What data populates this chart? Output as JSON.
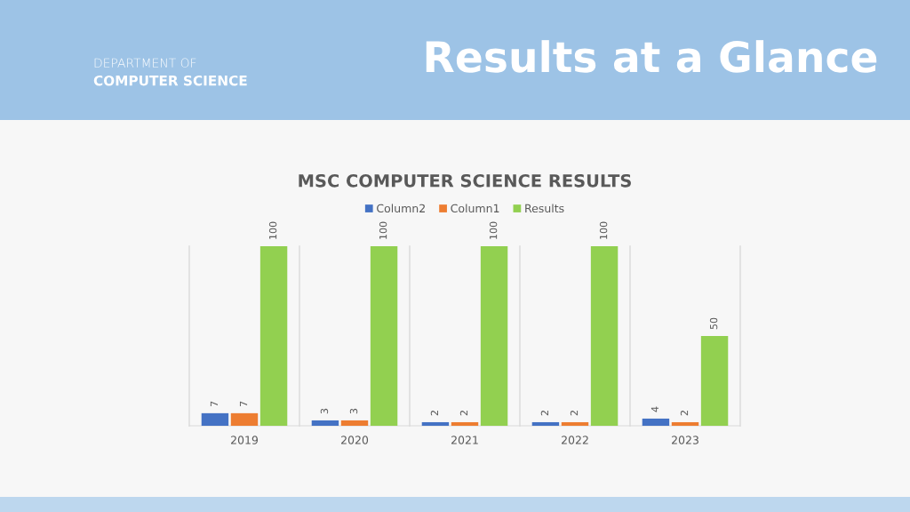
{
  "chart_data": {
    "type": "bar",
    "title": "Results at a Glance",
    "subtitle": "MSC COMPUTER SCIENCE RESULTS",
    "annotations": [
      "DEPARTMENT OF",
      "COMPUTER SCIENCE"
    ],
    "categories": [
      "2019",
      "2020",
      "2021",
      "2022",
      "2023"
    ],
    "series": [
      {
        "name": "Column2",
        "color": "#4472c4",
        "values": [
          7,
          3,
          2,
          2,
          4
        ]
      },
      {
        "name": "Column1",
        "color": "#ed7d31",
        "values": [
          7,
          3,
          2,
          2,
          2
        ]
      },
      {
        "name": "Results",
        "color": "#92d050",
        "values": [
          100,
          100,
          100,
          100,
          50
        ]
      }
    ],
    "data_labels": true,
    "grid": "x",
    "legend": "top",
    "tick_labels": "x"
  }
}
